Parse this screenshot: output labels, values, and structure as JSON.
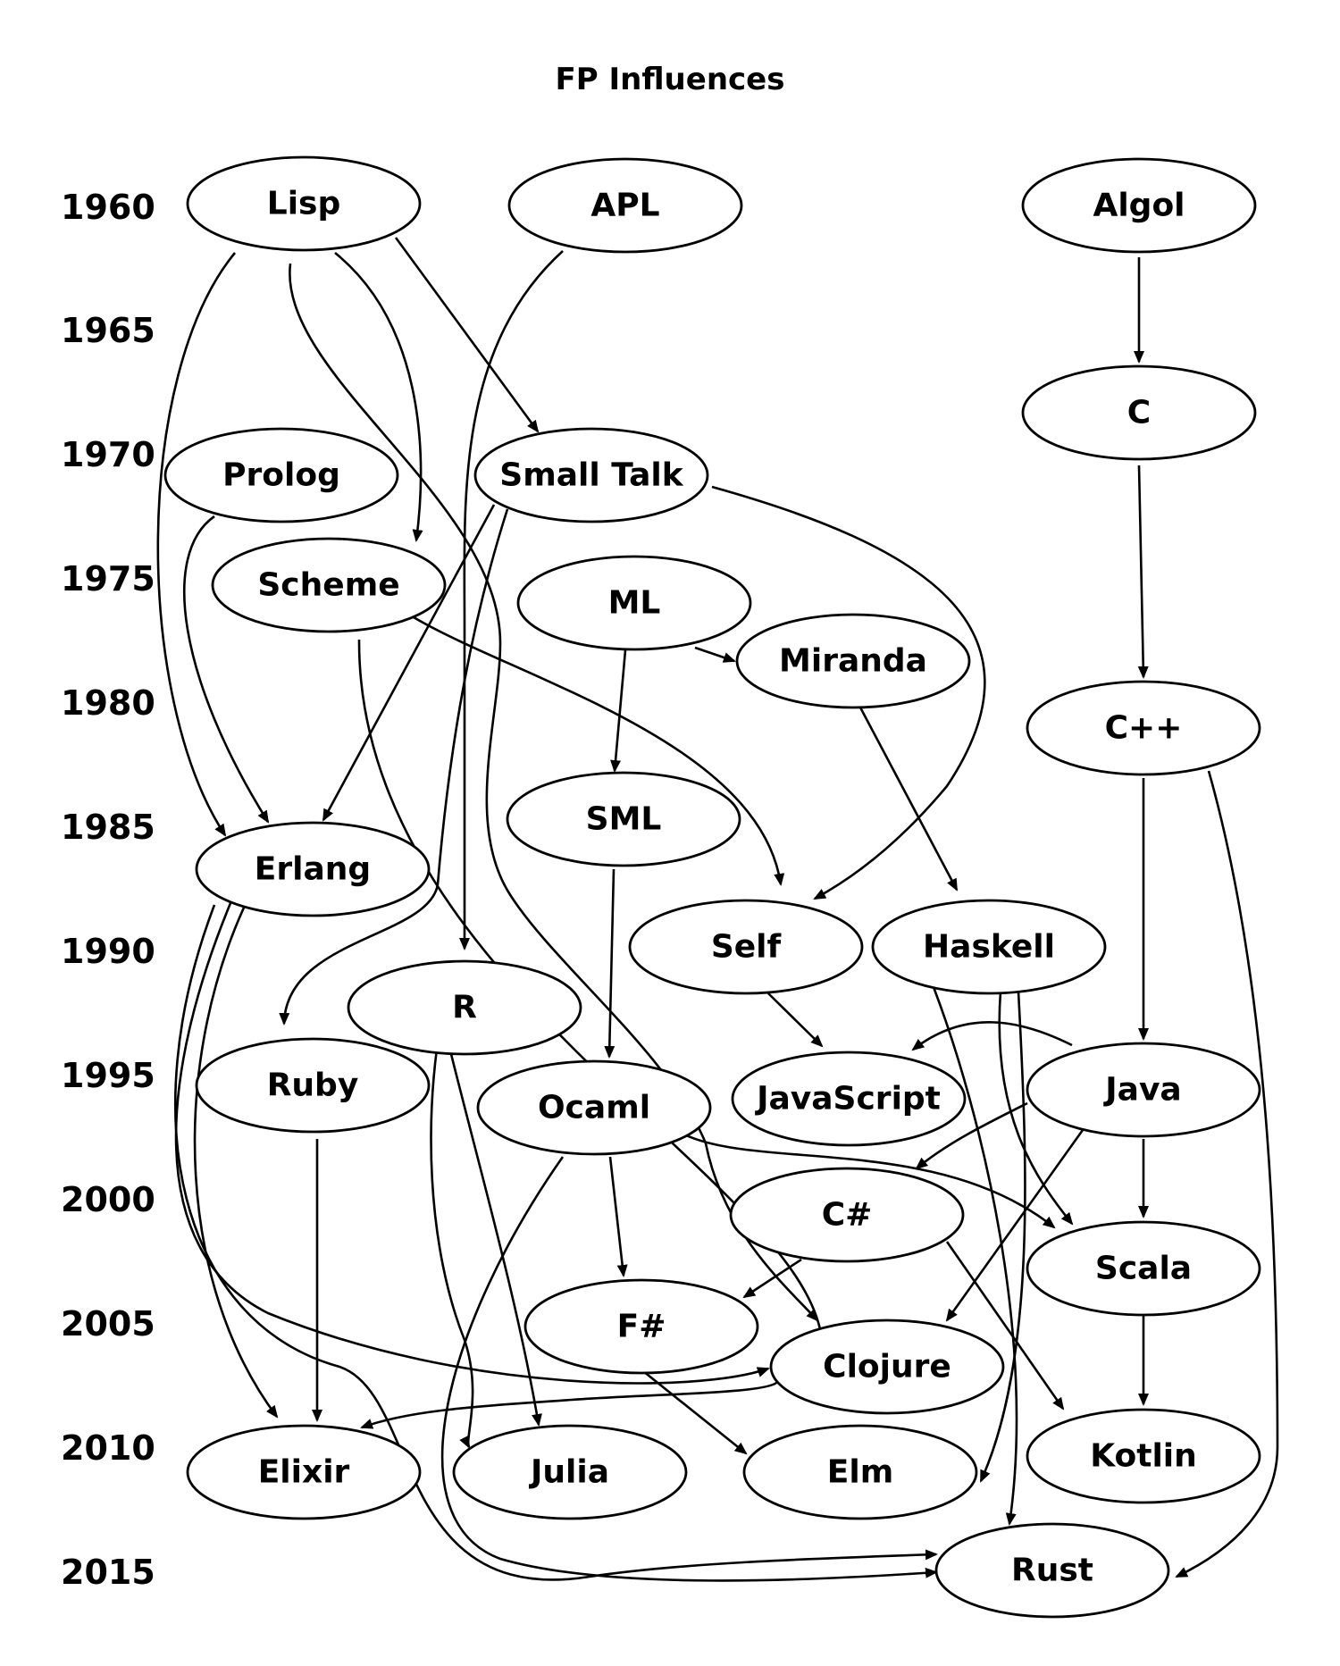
{
  "title": "FP Influences",
  "years": [
    "1960",
    "1965",
    "1970",
    "1975",
    "1980",
    "1985",
    "1990",
    "1995",
    "2000",
    "2005",
    "2010",
    "2015"
  ],
  "nodes": {
    "lisp": "Lisp",
    "apl": "APL",
    "algol": "Algol",
    "c": "C",
    "prolog": "Prolog",
    "smalltalk": "Small Talk",
    "scheme": "Scheme",
    "ml": "ML",
    "miranda": "Miranda",
    "cpp": "C++",
    "sml": "SML",
    "erlang": "Erlang",
    "self": "Self",
    "haskell": "Haskell",
    "r": "R",
    "ruby": "Ruby",
    "ocaml": "Ocaml",
    "javascript": "JavaScript",
    "java": "Java",
    "csharp": "C#",
    "scala": "Scala",
    "fsharp": "F#",
    "clojure": "Clojure",
    "elixir": "Elixir",
    "julia": "Julia",
    "elm": "Elm",
    "kotlin": "Kotlin",
    "rust": "Rust"
  },
  "edges": [
    [
      "lisp",
      "erlang"
    ],
    [
      "lisp",
      "scheme"
    ],
    [
      "lisp",
      "smalltalk"
    ],
    [
      "lisp",
      "clojure"
    ],
    [
      "apl",
      "r"
    ],
    [
      "algol",
      "c"
    ],
    [
      "c",
      "cpp"
    ],
    [
      "cpp",
      "java"
    ],
    [
      "cpp",
      "rust"
    ],
    [
      "prolog",
      "erlang"
    ],
    [
      "smalltalk",
      "erlang"
    ],
    [
      "smalltalk",
      "ruby"
    ],
    [
      "smalltalk",
      "self"
    ],
    [
      "scheme",
      "self"
    ],
    [
      "scheme",
      "rust"
    ],
    [
      "ml",
      "miranda"
    ],
    [
      "ml",
      "sml"
    ],
    [
      "miranda",
      "haskell"
    ],
    [
      "sml",
      "ocaml"
    ],
    [
      "erlang",
      "elixir"
    ],
    [
      "erlang",
      "clojure"
    ],
    [
      "erlang",
      "rust"
    ],
    [
      "self",
      "javascript"
    ],
    [
      "haskell",
      "scala"
    ],
    [
      "haskell",
      "elm"
    ],
    [
      "haskell",
      "rust"
    ],
    [
      "r",
      "julia"
    ],
    [
      "ruby",
      "elixir"
    ],
    [
      "ocaml",
      "fsharp"
    ],
    [
      "ocaml",
      "scala"
    ],
    [
      "ocaml",
      "rust"
    ],
    [
      "java",
      "javascript"
    ],
    [
      "java",
      "csharp"
    ],
    [
      "java",
      "scala"
    ],
    [
      "java",
      "clojure"
    ],
    [
      "csharp",
      "fsharp"
    ],
    [
      "csharp",
      "kotlin"
    ],
    [
      "scala",
      "kotlin"
    ],
    [
      "fsharp",
      "elm"
    ],
    [
      "clojure",
      "elixir"
    ],
    [
      "clojure",
      "julia"
    ]
  ]
}
